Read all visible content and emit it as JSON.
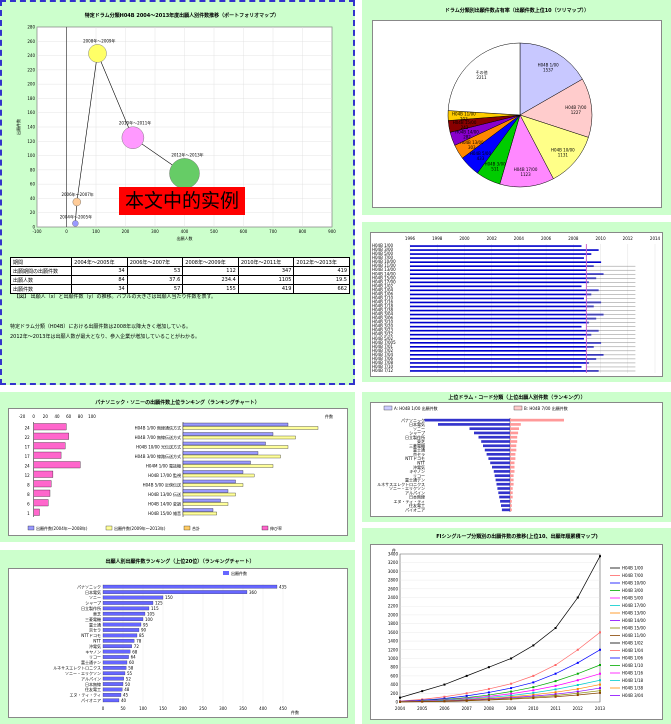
{
  "bubble": {
    "title": "特定ドラム分類H04B 2004〜2013年度出願人別件数推移（ポートフォリオマップ）",
    "xlabel": "出願人数",
    "ylabel": "出願件数",
    "xticks": [
      "-100",
      "0",
      "100",
      "200",
      "300",
      "400",
      "500",
      "600",
      "700",
      "800",
      "900"
    ],
    "yticks": [
      "0",
      "20",
      "40",
      "60",
      "80",
      "100",
      "120",
      "140",
      "160",
      "180",
      "200",
      "220",
      "240",
      "260",
      "280"
    ],
    "overlay": "本文中的实例",
    "points": [
      {
        "label": "2004年〜2005年",
        "x": 30,
        "y": 5,
        "r": 3,
        "color": "#9999ff"
      },
      {
        "label": "2006年〜2007年",
        "x": 35,
        "y": 35,
        "r": 4,
        "color": "#ffcc99"
      },
      {
        "label": "2008年〜2009年",
        "x": 105,
        "y": 243,
        "r": 9,
        "color": "#ffff66"
      },
      {
        "label": "2010年〜2011年",
        "x": 225,
        "y": 125,
        "r": 11,
        "color": "#ff99ff"
      },
      {
        "label": "2012年〜2013年",
        "x": 400,
        "y": 75,
        "r": 15,
        "color": "#66cc66"
      }
    ],
    "table": {
      "headers": [
        "期間",
        "2004年〜2005年",
        "2006年〜2007年",
        "2008年〜2009年",
        "2010年〜2011年",
        "2012年〜2013年"
      ],
      "rows": [
        [
          "出願期間の出願件数",
          "34",
          "53",
          "112",
          "347",
          "419"
        ],
        [
          "出願人数",
          "84",
          "37.6",
          "234.4",
          "1105",
          "19.5"
        ],
        [
          "出願件数",
          "34",
          "57",
          "155",
          "419",
          "662"
        ]
      ]
    },
    "caption": "【図】 出願人（x）と出願件数（y）の推移。バブルの大きさは出願人当たり件数を表す。",
    "notes": [
      "特定ドラム分類（H04B）における出願件数は2008年以降大きく増加している。",
      "2012年〜2013年は出願人数が最大となり、参入企業が増加していることがわかる。"
    ]
  },
  "pie": {
    "title": "ドラム分類別出願件数占有率（出願件数上位10（ツリマップ））",
    "slices": [
      {
        "label": "H04B 1/00",
        "value": 1537,
        "color": "#c8c8ff"
      },
      {
        "label": "H04B 7/00",
        "value": 1227,
        "color": "#ffcccc"
      },
      {
        "label": "H04B 10/00",
        "value": 1131,
        "color": "#ffff88"
      },
      {
        "label": "H04B 17/00",
        "value": 1123,
        "color": "#ff88ff"
      },
      {
        "label": "H04B 3/00",
        "value": 511,
        "color": "#00cc00"
      },
      {
        "label": "H04B 5/00",
        "value": 433,
        "color": "#0000ff"
      },
      {
        "label": "H04B 13/00",
        "value": 303,
        "color": "#ff8800"
      },
      {
        "label": "H04B 14/00",
        "value": 282,
        "color": "#8800cc"
      },
      {
        "label": "H04B 15/00",
        "value": 242,
        "color": "#880000"
      },
      {
        "label": "H04B 11/00",
        "value": 203,
        "color": "#ffcc00"
      },
      {
        "label": "その他",
        "value": 2211,
        "color": "#ffffff"
      }
    ]
  },
  "gantt": {
    "rows": [
      "H04B 1/00",
      "H04B 3/00",
      "H04B 5/00",
      "H04B 7/00",
      "H04B 10/00",
      "H04B 11/00",
      "H04B 13/00",
      "H04B 14/00",
      "H04B 15/00",
      "H04B 17/00",
      "H04B 1/02",
      "H04B 1/04",
      "H04B 1/06",
      "H04B 1/10",
      "H04B 1/16",
      "H04B 1/18",
      "H04B 1/38",
      "H04B 3/04",
      "H04B 3/06",
      "H04B 3/10",
      "H04B 3/20",
      "H04B 3/23",
      "H04B 3/32",
      "H04B 5/02",
      "H04B 7/005",
      "H04B 7/01",
      "H04B 7/02",
      "H04B 7/04",
      "H04B 7/06",
      "H04B 7/08",
      "H04B 7/10",
      "H04B 7/12"
    ],
    "years": [
      "1996",
      "1998",
      "2000",
      "2002",
      "2004",
      "2006",
      "2008",
      "2010",
      "2012",
      "2014"
    ]
  },
  "rank1": {
    "title": "パナソニック・ソニーの出願件数上位ランキング（ランキングチャート）",
    "left_values": [
      56,
      60,
      54,
      47,
      80,
      33,
      30,
      28,
      25,
      10
    ],
    "left_ticks": [
      "-20",
      "0",
      "20",
      "40",
      "60",
      "80",
      "100"
    ],
    "left_labels": [
      "24",
      "22",
      "17",
      "17",
      "24",
      "12",
      "8",
      "8",
      "6",
      "1"
    ],
    "items": [
      "H04B 1/00 無線通信方式",
      "H04B 7/00 無線伝送方式",
      "H04B 10/00 光伝送方式",
      "H04B 3/00 線路伝送方式",
      "H04M 1/00 電話機",
      "H04B 17/00 監視",
      "H04B 5/00 近傍伝送",
      "H04B 13/00 伝送",
      "H04B 14/00 変調",
      "H04B 15/00 雑音"
    ],
    "series": [
      {
        "name": "出願件数(2004〜2008)",
        "color": "#9999ff",
        "values": [
          140,
          120,
          110,
          100,
          90,
          80,
          70,
          60,
          50,
          40
        ]
      },
      {
        "name": "出願件数(2009〜2013)",
        "color": "#ffff99",
        "values": [
          180,
          150,
          140,
          130,
          120,
          95,
          80,
          70,
          60,
          45
        ]
      }
    ],
    "legend": [
      "出願件数(2004年〜2008年)",
      "出願件数(2009年〜2013年)",
      "合計",
      "伸び率"
    ],
    "xlabel": "件数"
  },
  "rank2": {
    "title": "上位ドラム・コード分類（上位出願人別件数（ランキング））",
    "legend": [
      "A: H04B 1/00 出願件数",
      "B: H04B 7/00 出願件数"
    ],
    "items": [
      "パナソニック",
      "日本電気",
      "ソニー",
      "シャープ",
      "日立製作所",
      "東芝",
      "三菱電機",
      "富士通",
      "京セラ",
      "NTTドコモ",
      "NTT",
      "沖電気",
      "キヤノン",
      "リコー",
      "富士通テン",
      "ルネサスエレクトロニクス",
      "ソニー・エリクソン",
      "アルパイン",
      "日本無線",
      "エヌ・ティ・ティ",
      "住友電工",
      "パイオニア"
    ],
    "a_values": [
      -95,
      -80,
      -45,
      -40,
      -35,
      -32,
      -30,
      -28,
      -26,
      -24,
      -22,
      -20,
      -18,
      -17,
      -16,
      -15,
      -14,
      -13,
      -12,
      -11,
      -10,
      -9
    ],
    "b_values": [
      60,
      12,
      10,
      9,
      8,
      8,
      7,
      7,
      6,
      6,
      5,
      5,
      5,
      4,
      4,
      4,
      3,
      3,
      3,
      2,
      2,
      2
    ]
  },
  "rank3": {
    "title": "出願人別出願件数ランキング（上位20位）（ランキングチャート）",
    "xlabel": "件数",
    "legend": [
      "出願件数"
    ],
    "items": [
      "パナソニック",
      "日本電気",
      "ソニー",
      "シャープ",
      "日立製作所",
      "東芝",
      "三菱電機",
      "富士通",
      "京セラ",
      "NTTドコモ",
      "NTT",
      "沖電気",
      "キヤノン",
      "リコー",
      "富士通テン",
      "ルネサスエレクトロニクス",
      "ソニー・エリクソン",
      "アルパイン",
      "日本無線",
      "住友電工",
      "エヌ・ティ・ティ",
      "パイオニア"
    ],
    "values": [
      435,
      360,
      150,
      125,
      115,
      105,
      100,
      95,
      90,
      85,
      78,
      72,
      68,
      64,
      60,
      58,
      55,
      52,
      50,
      48,
      45,
      40
    ],
    "xticks": [
      "0",
      "50",
      "100",
      "150",
      "200",
      "250",
      "300",
      "350",
      "400",
      "450"
    ]
  },
  "line": {
    "title": "FIシングループ分類別の出願件数の推移(上位10、出願年順累積マップ)",
    "ylabel": "件",
    "yticks": [
      "0",
      "200",
      "400",
      "600",
      "800",
      "1000",
      "1200",
      "1400",
      "1600",
      "1800",
      "2000",
      "2200",
      "2400",
      "2600",
      "2800",
      "3000",
      "3200",
      "3400"
    ],
    "xticks": [
      "2004",
      "2005",
      "2006",
      "2007",
      "2008",
      "2009",
      "2010",
      "2011",
      "2012",
      "2013"
    ],
    "series": [
      {
        "name": "H04B 1/00",
        "color": "#000000",
        "values": [
          100,
          250,
          400,
          600,
          800,
          1000,
          1300,
          1700,
          2400,
          3350
        ]
      },
      {
        "name": "H04B 7/00",
        "color": "#ff6666",
        "values": [
          20,
          60,
          120,
          200,
          300,
          420,
          600,
          850,
          1200,
          1600
        ]
      },
      {
        "name": "H04B 10/00",
        "color": "#0000ff",
        "values": [
          15,
          40,
          80,
          140,
          220,
          320,
          450,
          650,
          900,
          1200
        ]
      },
      {
        "name": "H04B 3/00",
        "color": "#00aa00",
        "values": [
          10,
          30,
          60,
          100,
          160,
          240,
          340,
          480,
          650,
          850
        ]
      },
      {
        "name": "H04B 5/00",
        "color": "#ff00ff",
        "values": [
          8,
          25,
          50,
          85,
          130,
          190,
          270,
          370,
          500,
          650
        ]
      },
      {
        "name": "H04B 17/00",
        "color": "#00cccc",
        "values": [
          6,
          20,
          40,
          70,
          105,
          150,
          210,
          290,
          390,
          500
        ]
      },
      {
        "name": "H04B 13/00",
        "color": "#ff8800",
        "values": [
          5,
          15,
          30,
          55,
          85,
          120,
          165,
          225,
          300,
          400
        ]
      },
      {
        "name": "H04B 14/00",
        "color": "#8800ff",
        "values": [
          4,
          12,
          25,
          45,
          70,
          100,
          135,
          180,
          240,
          320
        ]
      },
      {
        "name": "H04B 15/00",
        "color": "#888800",
        "values": [
          3,
          10,
          20,
          35,
          55,
          80,
          110,
          150,
          200,
          260
        ]
      },
      {
        "name": "H04B 11/00",
        "color": "#884400",
        "values": [
          2,
          8,
          15,
          28,
          45,
          65,
          90,
          120,
          160,
          210
        ]
      }
    ],
    "legend": [
      "H04B 1/00",
      "H04B 7/00",
      "H04B 10/00",
      "H04B 3/00",
      "H04B 5/00",
      "H04B 17/00",
      "H04B 13/00",
      "H04B 14/00",
      "H04B 15/00",
      "H04B 11/00",
      "H04B 1/02",
      "H04B 1/04",
      "H04B 1/06",
      "H04B 1/10",
      "H04B 1/16",
      "H04B 1/18",
      "H04B 1/38",
      "H04B 3/04"
    ]
  }
}
